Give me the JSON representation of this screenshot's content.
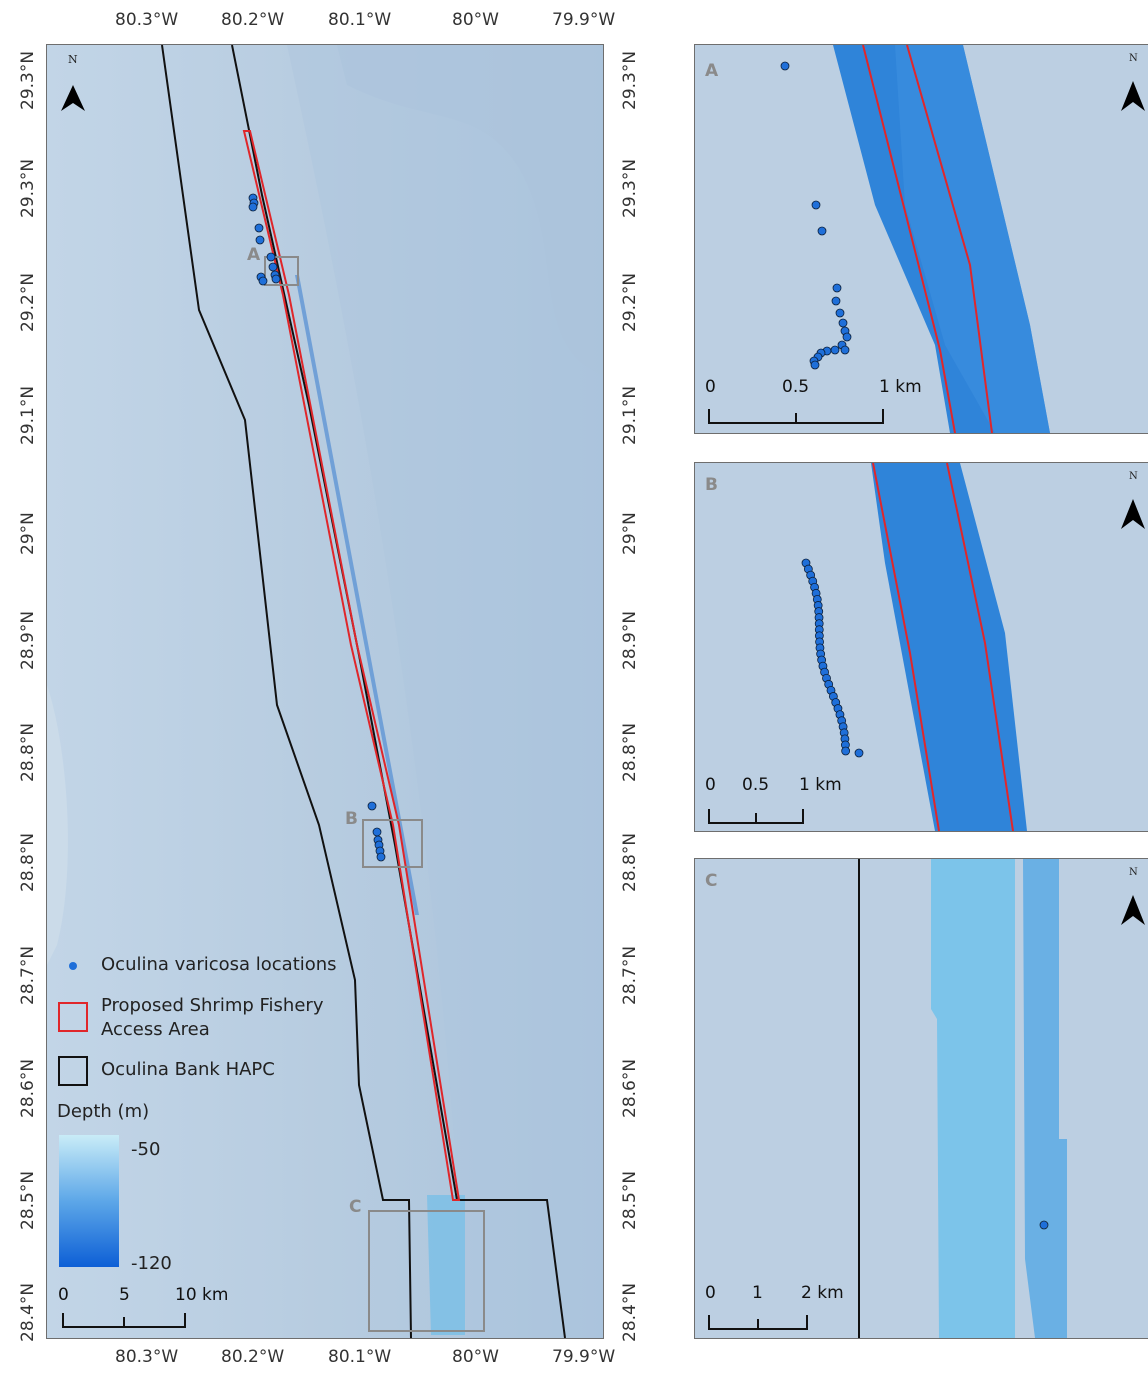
{
  "main_map": {
    "top_lon_ticks": [
      "80.3°W",
      "80.2°W",
      "80.1°W",
      "80°W",
      "79.9°W"
    ],
    "bottom_lon_ticks": [
      "80.3°W",
      "80.2°W",
      "80.1°W",
      "80°W",
      "79.9°W"
    ],
    "left_lat_ticks": [
      "29.3°N",
      "29.3°N",
      "29.2°N",
      "29.1°N",
      "29°N",
      "28.9°N",
      "28.8°N",
      "28.8°N",
      "28.7°N",
      "28.6°N",
      "28.5°N",
      "28.4°N"
    ],
    "right_lat_ticks": [
      "29.3°N",
      "29.3°N",
      "29.2°N",
      "29.1°N",
      "29°N",
      "28.9°N",
      "28.8°N",
      "28.8°N",
      "28.7°N",
      "28.6°N",
      "28.5°N",
      "28.4°N"
    ],
    "inset_box_labels": [
      "A",
      "B",
      "C"
    ],
    "north_label": "N",
    "scale": {
      "labels": [
        "0",
        "5",
        "10 km"
      ]
    }
  },
  "legend": {
    "points_label": "Oculina varicosa locations",
    "red_box_label_line1": "Proposed Shrimp Fishery",
    "red_box_label_line2": "Access Area",
    "black_box_label": "Oculina Bank HAPC",
    "depth_title": "Depth (m)",
    "depth_max": "-50",
    "depth_min": "-120"
  },
  "insets": [
    {
      "label": "A",
      "north": "N",
      "scale": [
        "0",
        "0.5",
        "1 km"
      ]
    },
    {
      "label": "B",
      "north": "N",
      "scale": [
        "0",
        "0.5",
        "1 km"
      ]
    },
    {
      "label": "C",
      "north": "N",
      "scale": [
        "0",
        "1",
        "2 km"
      ]
    }
  ],
  "colors": {
    "background": "#b8cde1",
    "hapc": "#000000",
    "access_area": "#e0262a",
    "points": "#1f6fd9",
    "bathy_shallow": "#c9ecf7",
    "bathy_deep": "#0d5fd6"
  }
}
